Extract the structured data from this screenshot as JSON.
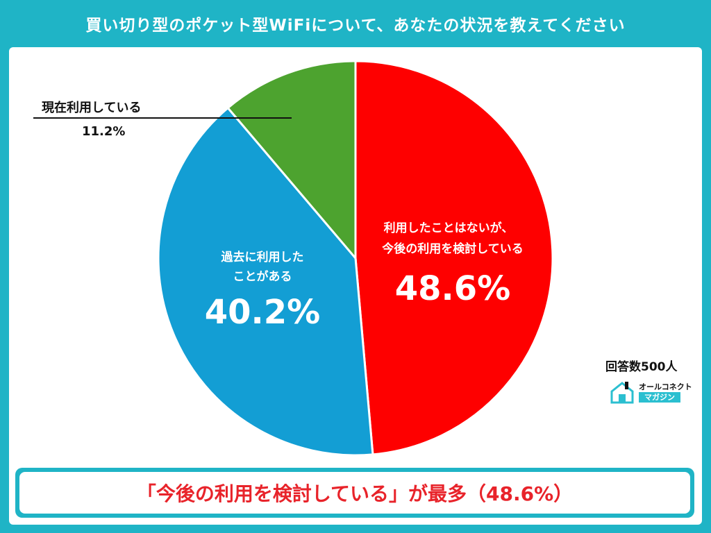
{
  "header": {
    "title": "買い切り型のポケット型WiFiについて、あなたの状況を教えてください"
  },
  "chart_data": {
    "type": "pie",
    "slices": [
      {
        "label": "利用したことはないが、今後の利用を検討している",
        "lines": [
          "利用したことはないが、",
          "今後の利用を検討している"
        ],
        "value": 48.6,
        "value_label": "48.6%",
        "color": "#fe0000"
      },
      {
        "label": "過去に利用したことがある",
        "lines": [
          "過去に利用した",
          "ことがある"
        ],
        "value": 40.2,
        "value_label": "40.2%",
        "color": "#139ed4"
      },
      {
        "label": "現在利用している",
        "lines": [
          "現在利用している"
        ],
        "value": 11.2,
        "value_label": "11.2%",
        "color": "#4da32f"
      }
    ],
    "start": "12 o'clock",
    "direction": "clockwise"
  },
  "source": {
    "respondents": "回答数500人",
    "logo_top": "オールコネクト",
    "logo_bottom": "マガジン"
  },
  "conclusion": {
    "text": "「今後の利用を検討している」が最多（48.6%）"
  },
  "colors": {
    "frame": "#1fb4c6",
    "accent_text": "#e8232a"
  }
}
